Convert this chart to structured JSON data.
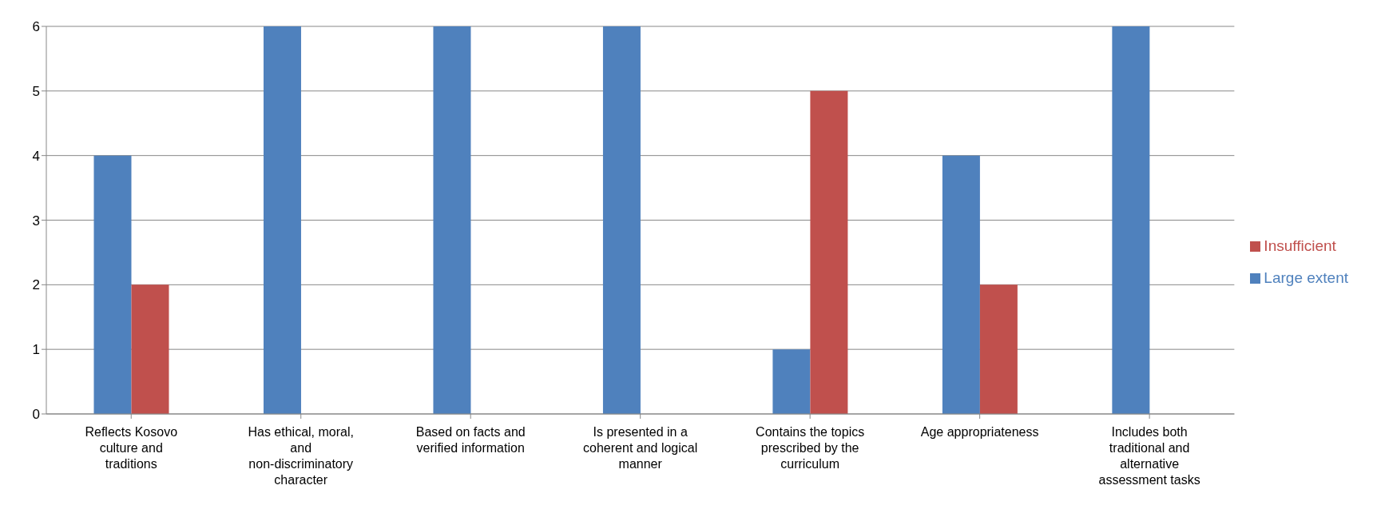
{
  "chart_data": {
    "type": "bar",
    "categories": [
      "Reflects Kosovo culture and traditions",
      "Has ethical, moral, and non-discriminatory character",
      "Based on facts and verified information",
      "Is presented in a coherent and logical manner",
      "Contains the topics prescribed by the curriculum",
      "Age appropriateness",
      "Includes both traditional and alternative assessment tasks"
    ],
    "series": [
      {
        "name": "Large extent",
        "color": "#4f81bd",
        "values": [
          4,
          6,
          6,
          6,
          1,
          4,
          6
        ]
      },
      {
        "name": "Insufficient",
        "color": "#c0504d",
        "values": [
          2,
          0,
          0,
          0,
          5,
          2,
          0
        ]
      }
    ],
    "ylim": [
      0,
      6
    ],
    "yticks": [
      0,
      1,
      2,
      3,
      4,
      5,
      6
    ],
    "grid": "y",
    "legend": "right"
  }
}
